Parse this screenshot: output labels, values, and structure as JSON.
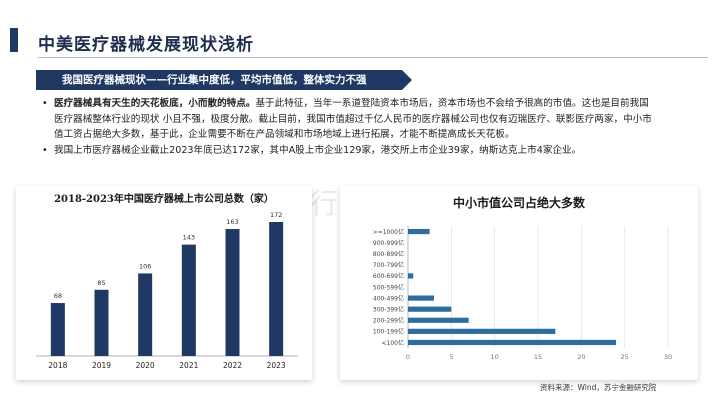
{
  "header": {
    "title": "中美医疗器械发展现状浅析"
  },
  "banner": {
    "text": "我国医疗器械现状——行业集中度低，平均市值低，整体实力不强"
  },
  "bullets": [
    {
      "bold": "医疗器械具有天生的天花板底，小而散的特点。",
      "text": "基于此特征，当年一系道登陆资本市场后，资本市场也不会给予很高的市值。这也是目前我国医疗器械整体行业的现状  小且不强，极度分散。截止目前，我国市值超过千亿人民币的医疗器械公司也仅有迈瑞医疗、联影医疗两家，中小市值工资占据绝大多数，基于此，企业需要不断在产品领域和市场地域上进行拓展，才能不断提高成长天花板。"
    },
    {
      "bold": "",
      "text": "我国上市医疗器械企业截止2023年底已达172家，其中A股上市企业129家，港交所上市企业39家，纳斯达克上市4家企业。"
    }
  ],
  "watermark": "n的行研笔",
  "source": "资料来源：Wind，苏宁金融研究院",
  "chart_data": [
    {
      "type": "bar",
      "title": "2018-2023年中国医疗器械上市公司总数（家）",
      "categories": [
        "2018",
        "2019",
        "2020",
        "2021",
        "2022",
        "2023"
      ],
      "values": [
        68,
        85,
        106,
        143,
        163,
        172
      ],
      "ylim": [
        0,
        190
      ],
      "color": "#1f3864",
      "grid": false
    },
    {
      "type": "bar",
      "orientation": "horizontal",
      "title": "中小市值公司占绝大多数",
      "categories": [
        "<100亿",
        "100-199亿",
        "200-299亿",
        "300-399亿",
        "400-499亿",
        "500-599亿",
        "600-699亿",
        "700-799亿",
        "800-899亿",
        "900-999亿",
        ">=1000亿"
      ],
      "values": [
        24,
        17,
        7,
        5,
        3,
        0,
        0.6,
        0,
        0,
        0,
        2.5
      ],
      "xticks": [
        0,
        5,
        10,
        15,
        20,
        25,
        30
      ],
      "xlim": [
        0,
        30
      ],
      "color": "#2e6e9e",
      "grid": true
    }
  ]
}
